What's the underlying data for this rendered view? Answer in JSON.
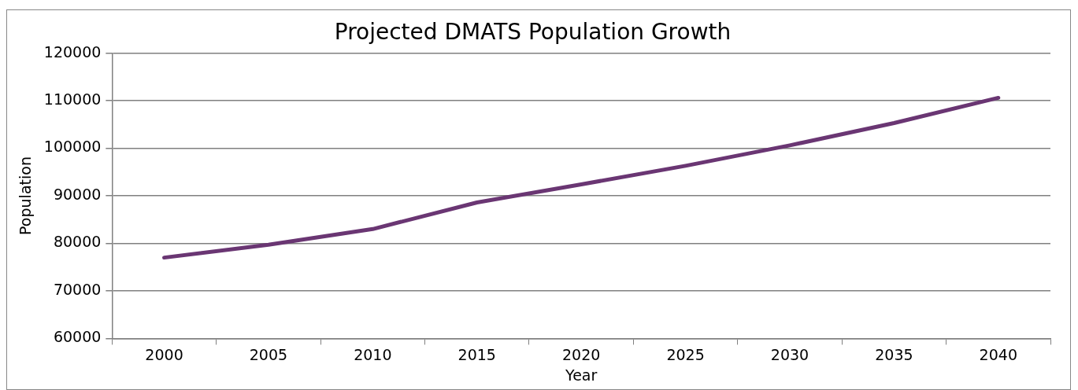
{
  "chart_data": {
    "type": "line",
    "title": "Projected DMATS Population Growth",
    "xlabel": "Year",
    "ylabel": "Population",
    "categories": [
      "2000",
      "2005",
      "2010",
      "2015",
      "2020",
      "2025",
      "2030",
      "2035",
      "2040"
    ],
    "series": [
      {
        "color": "#6a3673",
        "values": [
          77000,
          79700,
          83000,
          88600,
          92400,
          96300,
          100600,
          105300,
          110600
        ]
      }
    ],
    "ylim": [
      60000,
      120000
    ],
    "yticks": [
      60000,
      70000,
      80000,
      90000,
      100000,
      110000,
      120000
    ],
    "grid": "y",
    "legend": false,
    "marker": "none",
    "line_style": "solid"
  }
}
